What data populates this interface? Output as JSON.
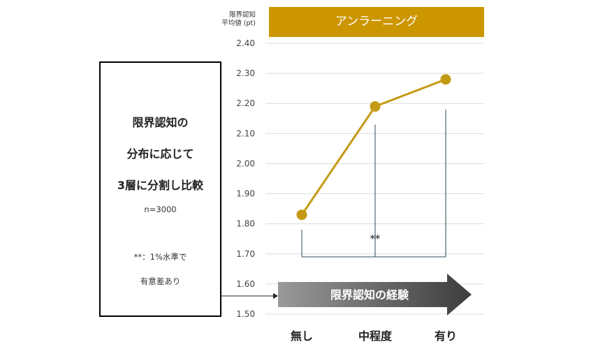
{
  "note": {
    "line1": "限界認知の",
    "line2": "分布に応じて",
    "line3": "3層に分割し比較",
    "n": "n=3000",
    "sig_note": "**：1%水準で",
    "sig_note2": "有意差あり"
  },
  "y_head": {
    "line1": "限界認知",
    "line2": "平均値 (pt)"
  },
  "colors": {
    "accent": "#cc9600",
    "line": "#c49a14",
    "bracket": "#2f4a5a"
  },
  "chart_data": {
    "type": "line",
    "title": "アンラーニング",
    "categories": [
      "無し",
      "中程度",
      "有り"
    ],
    "series": [
      {
        "values": [
          1.83,
          2.19,
          2.28
        ]
      }
    ],
    "ylim": [
      1.5,
      2.4
    ],
    "yticks": [
      "2.40",
      "2.30",
      "2.20",
      "2.10",
      "2.00",
      "1.90",
      "1.80",
      "1.70",
      "1.60",
      "1.50"
    ],
    "grid": true,
    "arrow_label": "限界認知の経験",
    "significance": "**"
  }
}
